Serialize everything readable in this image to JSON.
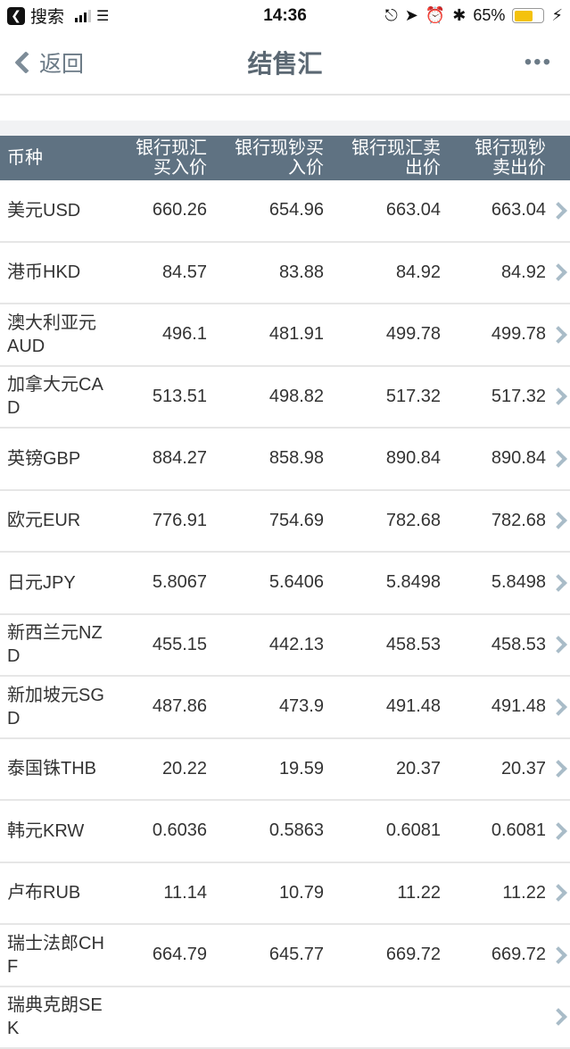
{
  "status_bar": {
    "back_app": "搜索",
    "time": "14:36",
    "battery": "65%",
    "battery_level": 0.65
  },
  "nav": {
    "back_label": "返回",
    "title": "结售汇",
    "more": "•••"
  },
  "table": {
    "headers": [
      "币种",
      "银行现汇买入价",
      "银行现钞买入价",
      "银行现汇卖出价",
      "银行现钞卖出价"
    ],
    "rows": [
      {
        "name": "美元USD",
        "v": [
          "660.26",
          "654.96",
          "663.04",
          "663.04"
        ]
      },
      {
        "name": "港币HKD",
        "v": [
          "84.57",
          "83.88",
          "84.92",
          "84.92"
        ]
      },
      {
        "name": "澳大利亚元AUD",
        "v": [
          "496.1",
          "481.91",
          "499.78",
          "499.78"
        ]
      },
      {
        "name": "加拿大元CAD",
        "v": [
          "513.51",
          "498.82",
          "517.32",
          "517.32"
        ]
      },
      {
        "name": "英镑GBP",
        "v": [
          "884.27",
          "858.98",
          "890.84",
          "890.84"
        ]
      },
      {
        "name": "欧元EUR",
        "v": [
          "776.91",
          "754.69",
          "782.68",
          "782.68"
        ]
      },
      {
        "name": "日元JPY",
        "v": [
          "5.8067",
          "5.6406",
          "5.8498",
          "5.8498"
        ]
      },
      {
        "name": "新西兰元NZD",
        "v": [
          "455.15",
          "442.13",
          "458.53",
          "458.53"
        ]
      },
      {
        "name": "新加坡元SGD",
        "v": [
          "487.86",
          "473.9",
          "491.48",
          "491.48"
        ]
      },
      {
        "name": "泰国铢THB",
        "v": [
          "20.22",
          "19.59",
          "20.37",
          "20.37"
        ]
      },
      {
        "name": "韩元KRW",
        "v": [
          "0.6036",
          "0.5863",
          "0.6081",
          "0.6081"
        ]
      },
      {
        "name": "卢布RUB",
        "v": [
          "11.14",
          "10.79",
          "11.22",
          "11.22"
        ]
      },
      {
        "name": "瑞士法郎CHF",
        "v": [
          "664.79",
          "645.77",
          "669.72",
          "669.72"
        ]
      },
      {
        "name": "瑞典克朗SEK",
        "v": [
          "",
          "",
          "",
          ""
        ]
      }
    ]
  }
}
